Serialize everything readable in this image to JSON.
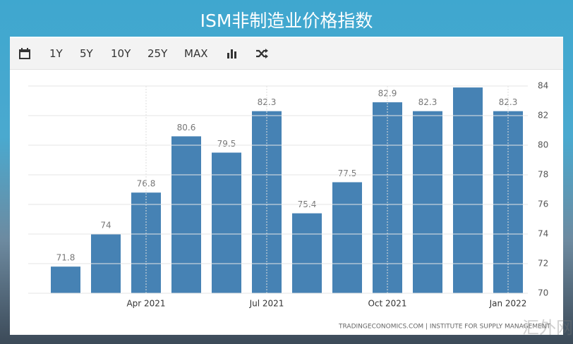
{
  "title": "ISM非制造业价格指数",
  "toolbar": {
    "buttons": [
      "1Y",
      "5Y",
      "10Y",
      "25Y",
      "MAX"
    ]
  },
  "chart_data": {
    "type": "bar",
    "categories": [
      null,
      null,
      "Apr 2021",
      null,
      null,
      "Jul 2021",
      null,
      null,
      "Oct 2021",
      null,
      null,
      "Jan 2022"
    ],
    "values": [
      71.8,
      74,
      76.8,
      80.6,
      79.5,
      82.3,
      75.4,
      77.5,
      82.9,
      82.3,
      83.9,
      82.3
    ],
    "color": "#4682b4",
    "ylim": [
      70,
      84
    ],
    "yticks": [
      70,
      72,
      74,
      76,
      78,
      80,
      82,
      84
    ],
    "grid": true
  },
  "source": "TRADINGECONOMICS.COM | INSTITUTE FOR SUPPLY MANAGEMENT",
  "watermark": "汇外网"
}
